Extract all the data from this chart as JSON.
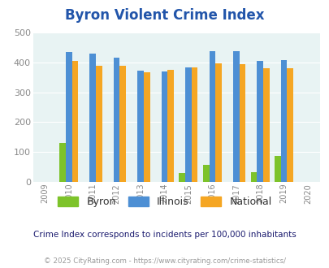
{
  "title": "Byron Violent Crime Index",
  "all_years": [
    2009,
    2010,
    2011,
    2012,
    2013,
    2014,
    2015,
    2016,
    2017,
    2018,
    2019,
    2020
  ],
  "data_years": [
    2010,
    2011,
    2012,
    2013,
    2014,
    2015,
    2016,
    2017,
    2018,
    2019
  ],
  "byron": [
    130,
    0,
    0,
    0,
    0,
    30,
    58,
    0,
    33,
    87
  ],
  "illinois": [
    433,
    428,
    415,
    372,
    369,
    383,
    437,
    437,
    405,
    408
  ],
  "national": [
    404,
    387,
    387,
    365,
    375,
    383,
    397,
    394,
    379,
    379
  ],
  "byron_color": "#7dc32a",
  "illinois_color": "#4d8fd4",
  "national_color": "#f5a623",
  "bg_color": "#e8f3f3",
  "ylim": [
    0,
    500
  ],
  "yticks": [
    0,
    100,
    200,
    300,
    400,
    500
  ],
  "footnote": "Crime Index corresponds to incidents per 100,000 inhabitants",
  "copyright": "© 2025 CityRating.com - https://www.cityrating.com/crime-statistics/",
  "title_color": "#2255aa",
  "footnote_color": "#1a1a6e",
  "copyright_color": "#999999"
}
